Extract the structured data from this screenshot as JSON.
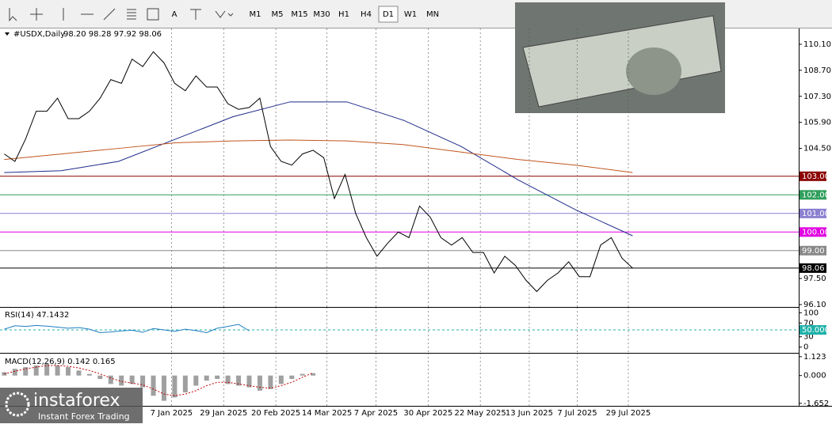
{
  "toolbar": {
    "timeframes": [
      "M1",
      "M5",
      "M15",
      "M30",
      "H1",
      "H4",
      "D1",
      "W1",
      "MN"
    ],
    "active": "D1"
  },
  "watermark": {
    "brand": "instaforex",
    "tagline": "Instant Forex Trading"
  },
  "chart_data": [
    {
      "type": "line",
      "title": "#USDX,Daily",
      "subtitle": "98.20 98.28 97.92 98.06",
      "color": "#000000",
      "values": [
        104.2,
        103.8,
        105.0,
        106.5,
        106.5,
        107.2,
        106.1,
        106.1,
        106.5,
        107.2,
        108.2,
        108.0,
        109.3,
        108.9,
        109.7,
        109.1,
        108.0,
        107.6,
        108.4,
        107.8,
        107.8,
        106.9,
        106.6,
        106.7,
        107.2,
        104.6,
        103.8,
        103.6,
        104.2,
        104.4,
        104.0,
        101.8,
        103.1,
        101.0,
        99.7,
        98.7,
        99.4,
        100.0,
        99.7,
        101.4,
        100.8,
        99.7,
        99.3,
        99.7,
        98.9,
        98.9,
        97.8,
        98.7,
        98.2,
        97.4,
        96.8,
        97.4,
        97.8,
        98.4,
        97.6,
        97.6,
        99.3,
        99.7,
        98.6,
        98.06
      ],
      "lines": [
        {
          "color": "#1f2a8a",
          "values": [
            103.2,
            103.3,
            103.8,
            105.0,
            106.2,
            107.0,
            107.0,
            106.0,
            104.6,
            102.8,
            101.2,
            99.8
          ]
        },
        {
          "color": "#c0561e",
          "values": [
            103.9,
            104.2,
            104.5,
            104.8,
            104.9,
            104.95,
            104.9,
            104.7,
            104.3,
            103.9,
            103.6,
            103.2
          ]
        }
      ],
      "xlim": [
        -0.4,
        74.6
      ],
      "xticks": [
        {
          "value": 15.7,
          "label": "7 Jan 2025"
        },
        {
          "value": 20.6,
          "label": "29 Jan 2025"
        },
        {
          "value": 25.5,
          "label": "20 Feb 2025"
        },
        {
          "value": 30.3,
          "label": "14 Mar 2025"
        },
        {
          "value": 34.9,
          "label": "7 Apr 2025"
        },
        {
          "value": 39.8,
          "label": "30 Apr 2025"
        },
        {
          "value": 44.7,
          "label": "22 May 2025"
        },
        {
          "value": 49.3,
          "label": "13 Jun 2025"
        },
        {
          "value": 53.8,
          "label": "7 Jul 2025"
        },
        {
          "value": 58.6,
          "label": "29 Jul 2025"
        }
      ],
      "ylim": [
        95.97,
        110.95
      ],
      "yticks": [
        {
          "value": 110.1,
          "label": "110.10"
        },
        {
          "value": 108.7,
          "label": "108.70"
        },
        {
          "value": 107.3,
          "label": "107.30"
        },
        {
          "value": 105.9,
          "label": "105.90"
        },
        {
          "value": 104.5,
          "label": "104.50"
        },
        {
          "value": 97.5,
          "label": "97.50"
        },
        {
          "value": 96.1,
          "label": "96.10"
        }
      ],
      "levels": [
        {
          "value": 103,
          "label": "103.00",
          "color": "#8b0000"
        },
        {
          "value": 102,
          "label": "102.00",
          "color": "#2e9e5b"
        },
        {
          "value": 101,
          "label": "101.00",
          "color": "#8a7fd0"
        },
        {
          "value": 100,
          "label": "100.00",
          "color": "#e000e0"
        },
        {
          "value": 99,
          "label": "99.00",
          "color": "#888888"
        },
        {
          "value": 98.06,
          "label": "98.06",
          "color": "#000000"
        }
      ]
    },
    {
      "type": "rsi",
      "title": "RSI(14) 47.1432",
      "color": "#1e7fc0",
      "values": [
        52,
        62,
        60,
        63,
        61,
        58,
        55,
        57,
        52,
        42,
        44,
        47,
        49,
        43,
        54,
        50,
        46,
        52,
        48,
        42,
        55,
        60,
        66,
        47.1432
      ],
      "xlim": [
        -0.4,
        74.6
      ],
      "ylim": [
        -16.7,
        116.7
      ],
      "yticks": [
        100,
        70,
        30,
        0
      ],
      "levels": [
        {
          "value": 50,
          "label": "50.0000",
          "color": "#20b2aa"
        }
      ]
    },
    {
      "type": "macd",
      "title": "MACD(12,26,9) 0.142 0.165",
      "color": "#a0a0a0",
      "signal_color": "#c00000",
      "values": [
        0.2,
        0.4,
        0.5,
        0.6,
        0.7,
        0.6,
        0.5,
        0.3,
        0.1,
        -0.2,
        -0.5,
        -0.6,
        -0.5,
        -0.7,
        -1.2,
        -1.5,
        -1.3,
        -1.0,
        -0.6,
        -0.3,
        -0.2,
        -0.5,
        -0.6,
        -0.7,
        -0.9,
        -0.8,
        -0.5,
        -0.2,
        0.1,
        0.142
      ],
      "signal": [
        0.1,
        0.25,
        0.4,
        0.5,
        0.6,
        0.6,
        0.55,
        0.45,
        0.3,
        0.1,
        -0.15,
        -0.35,
        -0.45,
        -0.55,
        -0.8,
        -1.1,
        -1.2,
        -1.1,
        -0.9,
        -0.6,
        -0.4,
        -0.4,
        -0.5,
        -0.6,
        -0.7,
        -0.75,
        -0.6,
        -0.4,
        -0.1,
        0.165
      ],
      "xlim": [
        -0.4,
        74.6
      ],
      "ylim": [
        -1.8,
        1.35
      ],
      "yticks": [
        1.123,
        {
          "value": 0,
          "label": "0.000"
        },
        -1.652
      ]
    }
  ]
}
